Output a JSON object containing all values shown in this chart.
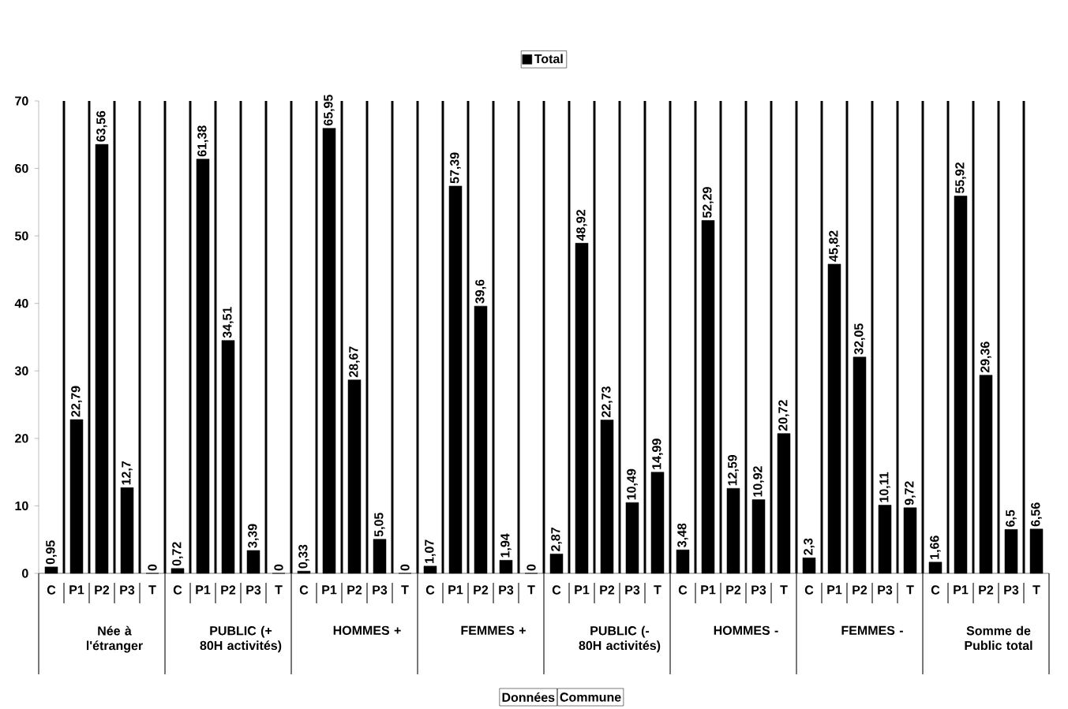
{
  "chart_data": {
    "type": "bar",
    "categories": [
      "C",
      "P1",
      "P2",
      "P3",
      "T",
      "C",
      "P1",
      "P2",
      "P3",
      "T",
      "C",
      "P1",
      "P2",
      "P3",
      "T",
      "C",
      "P1",
      "P2",
      "P3",
      "T",
      "C",
      "P1",
      "P2",
      "P3",
      "T",
      "C",
      "P1",
      "P2",
      "P3",
      "T",
      "C",
      "P1",
      "P2",
      "P3",
      "T",
      "C",
      "P1",
      "P2",
      "P3",
      "T"
    ],
    "series": [
      {
        "name": "Total",
        "color": "#000000",
        "values": [
          0.95,
          22.79,
          63.56,
          12.7,
          0,
          0.72,
          61.38,
          34.51,
          3.39,
          0,
          0.33,
          65.95,
          28.67,
          5.05,
          0,
          1.07,
          57.39,
          39.6,
          1.94,
          0,
          2.87,
          48.92,
          22.73,
          10.49,
          14.99,
          3.48,
          52.29,
          12.59,
          10.92,
          20.72,
          2.3,
          45.82,
          32.05,
          10.11,
          9.72,
          1.66,
          55.92,
          29.36,
          6.5,
          6.56
        ],
        "value_labels": [
          "0,95",
          "22,79",
          "63,56",
          "12,7",
          "0",
          "0,72",
          "61,38",
          "34,51",
          "3,39",
          "0",
          "0,33",
          "65,95",
          "28,67",
          "5,05",
          "0",
          "1,07",
          "57,39",
          "39,6",
          "1,94",
          "0",
          "2,87",
          "48,92",
          "22,73",
          "10,49",
          "14,99",
          "3,48",
          "52,29",
          "12,59",
          "10,92",
          "20,72",
          "2,3",
          "45,82",
          "32,05",
          "10,11",
          "9,72",
          "1,66",
          "55,92",
          "29,36",
          "6,5",
          "6,56"
        ]
      }
    ],
    "annotations": [
      "Née à l'étranger",
      "PUBLIC (+ 80H activités)",
      "HOMMES +",
      "FEMMES +",
      "PUBLIC (- 80H activités)",
      "HOMMES -",
      "FEMMES -",
      "Somme de Public total",
      "Données",
      "Commune"
    ],
    "ylim": [
      0,
      70
    ],
    "yticks": [
      0,
      10,
      20,
      30,
      40,
      50,
      60,
      70
    ],
    "grid": "x",
    "legend": "top"
  }
}
